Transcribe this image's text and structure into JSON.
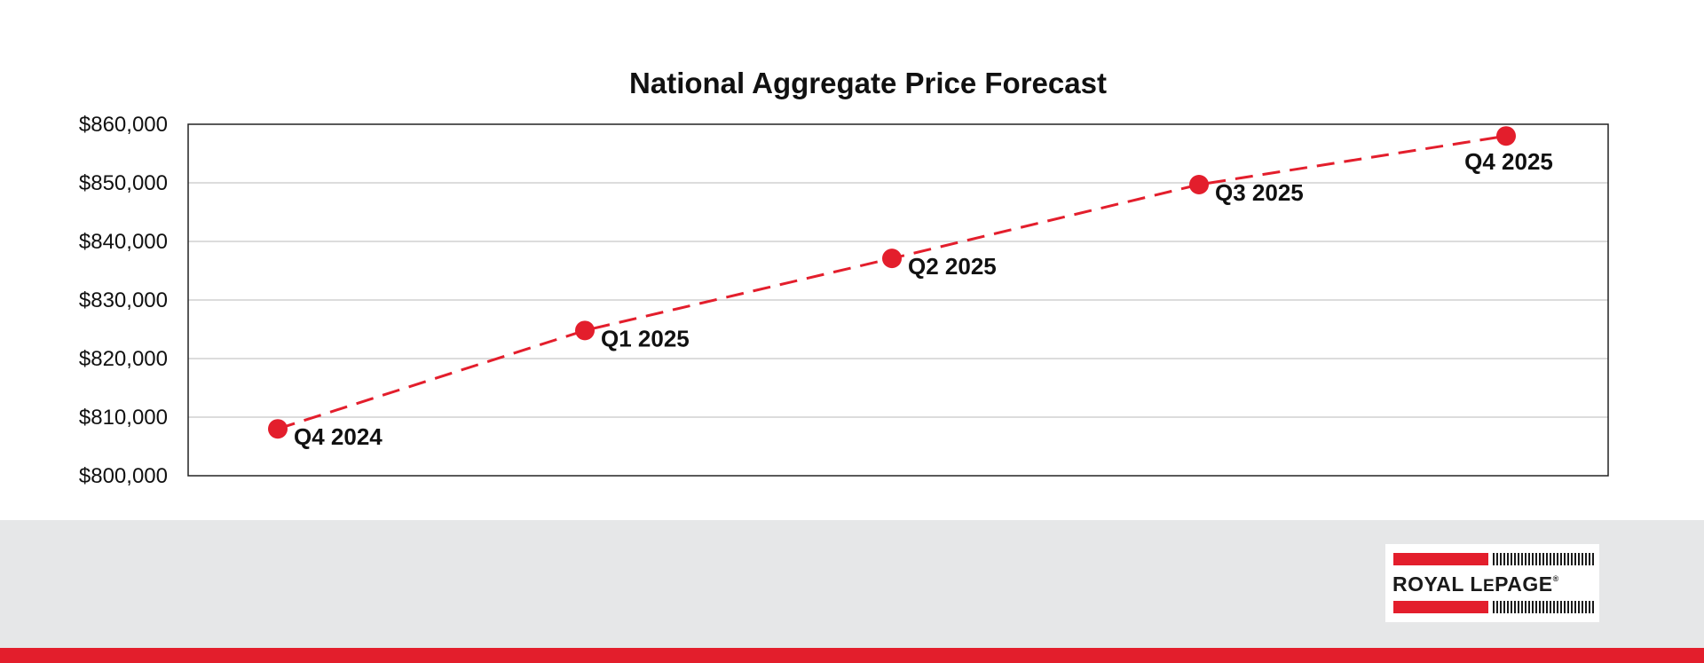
{
  "chart_data": {
    "type": "line",
    "title": "National Aggregate Price Forecast",
    "categories": [
      "Q4 2024",
      "Q1 2025",
      "Q2 2025",
      "Q3 2025",
      "Q4 2025"
    ],
    "series": [
      {
        "values": [
          808000,
          824800,
          837100,
          849700,
          858000
        ]
      }
    ],
    "y_ticks": [
      "$800,000",
      "$810,000",
      "$820,000",
      "$830,000",
      "$840,000",
      "$850,000",
      "$860,000"
    ],
    "ylim": [
      800000,
      860000
    ],
    "line_style": "dashed",
    "grid": true,
    "point_labels": true
  },
  "colors": {
    "series": "#e31e2c",
    "grid": "#c8c8c8",
    "footer": "#e6e7e8",
    "brand_red": "#e31e2c"
  },
  "footer": {
    "logo": {
      "royal": "ROYAL",
      "le": "L",
      "e": "E",
      "page": "PAGE",
      "reg": "®"
    }
  }
}
